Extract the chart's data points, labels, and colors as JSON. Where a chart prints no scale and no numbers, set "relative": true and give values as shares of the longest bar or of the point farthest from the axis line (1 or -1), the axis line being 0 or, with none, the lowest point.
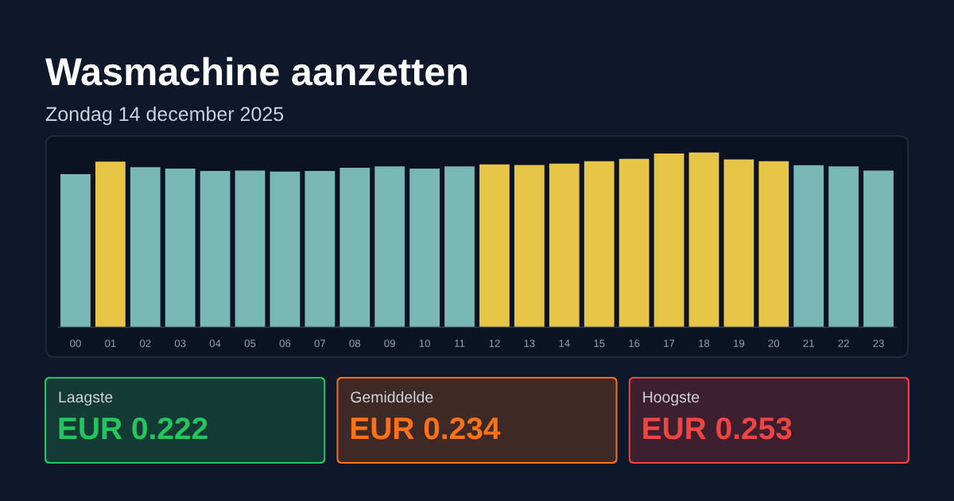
{
  "chart_data": [
    {
      "type": "bar",
      "title": "Wasmachine aanzetten",
      "subtitle": "Zondag 14 december 2025",
      "relative": true,
      "tick_labels": "x",
      "categories": [
        "00",
        "01",
        "02",
        "03",
        "04",
        "05",
        "06",
        "07",
        "08",
        "09",
        "10",
        "11",
        "12",
        "13",
        "14",
        "15",
        "16",
        "17",
        "18",
        "19",
        "20",
        "21",
        "22",
        "23"
      ],
      "values": [
        0.876,
        0.948,
        0.916,
        0.908,
        0.894,
        0.897,
        0.891,
        0.895,
        0.913,
        0.921,
        0.908,
        0.921,
        0.932,
        0.929,
        0.937,
        0.95,
        0.964,
        0.995,
        1.0,
        0.961,
        0.95,
        0.927,
        0.921,
        0.897
      ],
      "colors": [
        "#7ab8b8",
        "#e6c547",
        "#7ab8b8",
        "#7ab8b8",
        "#7ab8b8",
        "#7ab8b8",
        "#7ab8b8",
        "#7ab8b8",
        "#7ab8b8",
        "#7ab8b8",
        "#7ab8b8",
        "#7ab8b8",
        "#e6c547",
        "#e6c547",
        "#e6c547",
        "#e6c547",
        "#e6c547",
        "#e6c547",
        "#e6c547",
        "#e6c547",
        "#e6c547",
        "#7ab8b8",
        "#7ab8b8",
        "#7ab8b8"
      ]
    },
    {
      "type": "other",
      "title": "Laagste",
      "annotations": [
        "EUR 0.222"
      ],
      "color": "#22c55e"
    },
    {
      "type": "other",
      "title": "Gemiddelde",
      "annotations": [
        "EUR 0.234"
      ],
      "color": "#f97316"
    },
    {
      "type": "other",
      "title": "Hoogste",
      "annotations": [
        "EUR 0.253"
      ],
      "color": "#ef4444"
    }
  ]
}
